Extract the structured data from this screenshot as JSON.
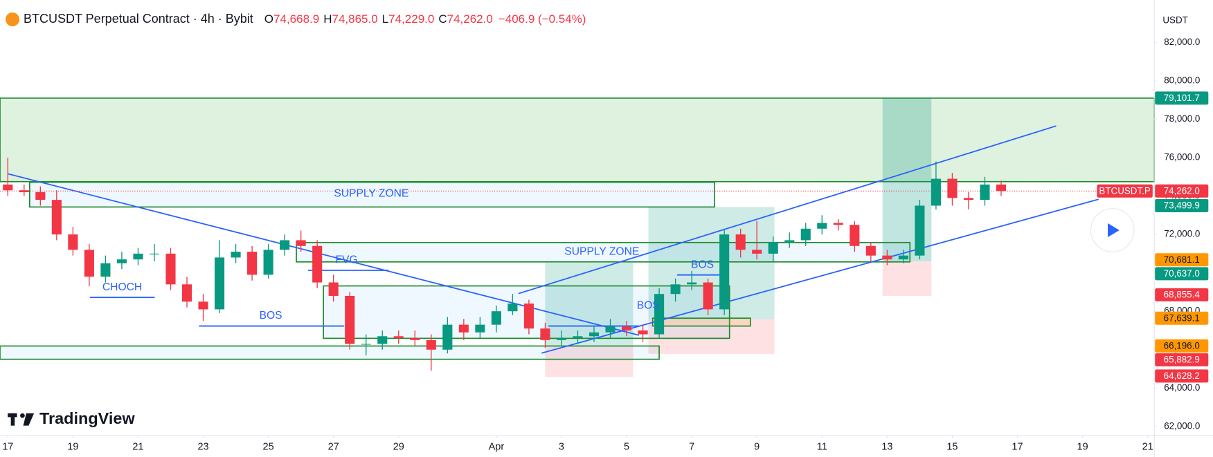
{
  "chart_data": {
    "type": "candlestick",
    "title": "BTCUSDT Perpetual Contract · 4h · Bybit",
    "ohlc": [
      {
        "key": "O",
        "value": {
          "value": 74668.9,
          "label": "74,668.9"
        }
      },
      {
        "key": "H",
        "value": {
          "value": 74865.0,
          "label": "74,865.0"
        }
      },
      {
        "key": "L",
        "value": {
          "value": 74229.0,
          "label": "74,229.0"
        }
      },
      {
        "key": "C",
        "value": {
          "value": 74262.0,
          "label": "74,262.0"
        }
      }
    ],
    "change": "−406.9 (−0.54%)",
    "unit": "USDT",
    "logo": "TradingView",
    "symbol_tag": "BTCUSDT.P",
    "up_color": "#089981",
    "down_color": "#f23645",
    "grid": false,
    "x": [
      0,
      0.5,
      1,
      1.5,
      2,
      2.5,
      3,
      3.5,
      4,
      4.5,
      5,
      5.5,
      6,
      6.5,
      7,
      7.5,
      8,
      8.5,
      9,
      9.5,
      10,
      10.5,
      11,
      11.5,
      12,
      12.5,
      13,
      13.5,
      14,
      14.5,
      15,
      15.5,
      16,
      16.5,
      17,
      17.5,
      18,
      18.5,
      19,
      19.5,
      20,
      20.5,
      21,
      21.5,
      22,
      22.5,
      23,
      23.5,
      24,
      24.5,
      25,
      25.5,
      26,
      26.5,
      27,
      27.5,
      28,
      28.5,
      29,
      29.5,
      30,
      30.5
    ],
    "open": [
      74600,
      74300,
      74200,
      73800,
      72000,
      71200,
      69800,
      70500,
      70700,
      71000,
      71000,
      69400,
      68500,
      68100,
      70800,
      71100,
      69900,
      71200,
      71700,
      71400,
      69500,
      68800,
      66300,
      66300,
      66700,
      66600,
      66500,
      66000,
      67300,
      66900,
      67300,
      68000,
      68400,
      67100,
      66500,
      66600,
      66700,
      66900,
      67200,
      67000,
      66800,
      68900,
      69400,
      69500,
      68100,
      72000,
      71200,
      71000,
      71600,
      71700,
      72300,
      72600,
      72500,
      71400,
      70900,
      70700,
      70900,
      73500,
      74900,
      73900,
      73800,
      74600
    ],
    "high": [
      76000,
      74600,
      74500,
      74300,
      72400,
      71500,
      70900,
      71100,
      71300,
      71500,
      71300,
      69800,
      68900,
      71700,
      71500,
      71400,
      71500,
      72000,
      72200,
      71700,
      69900,
      69000,
      66800,
      67000,
      67000,
      67000,
      66800,
      67700,
      67600,
      67700,
      68300,
      68900,
      68600,
      67400,
      67000,
      67000,
      67200,
      67600,
      67500,
      67300,
      69200,
      69700,
      70100,
      69700,
      72300,
      72300,
      72700,
      71900,
      72100,
      72600,
      73000,
      72800,
      72700,
      71600,
      71200,
      71200,
      73800,
      75800,
      75200,
      74200,
      75000,
      74800
    ],
    "low": [
      74000,
      74000,
      73500,
      71700,
      70900,
      69300,
      69500,
      70200,
      70400,
      70600,
      69100,
      68200,
      67500,
      67900,
      70500,
      69600,
      69700,
      70900,
      71100,
      69200,
      68500,
      66000,
      65700,
      66000,
      66300,
      66200,
      64900,
      65800,
      66500,
      66600,
      66900,
      67800,
      66800,
      66100,
      66200,
      66300,
      66400,
      66600,
      66700,
      66400,
      66600,
      68500,
      69100,
      67800,
      67800,
      70800,
      70700,
      70600,
      71300,
      71400,
      72000,
      72200,
      71100,
      70600,
      70400,
      70500,
      70700,
      73300,
      73500,
      73300,
      73500,
      74000
    ],
    "close": [
      74300,
      74200,
      73800,
      72000,
      71200,
      69800,
      70500,
      70700,
      71000,
      71000,
      69400,
      68500,
      68100,
      70800,
      71100,
      69900,
      71200,
      71700,
      71400,
      69500,
      68800,
      66300,
      66300,
      66700,
      66600,
      66500,
      66000,
      67300,
      66900,
      67300,
      68000,
      68400,
      67100,
      66500,
      66600,
      66700,
      66900,
      67200,
      67000,
      66800,
      68900,
      69400,
      69500,
      68100,
      72000,
      71200,
      71000,
      71600,
      71700,
      72300,
      72600,
      72500,
      71400,
      70900,
      70700,
      70900,
      73500,
      74900,
      73900,
      73800,
      74600,
      74262
    ],
    "xlim": [
      -0.24,
      35.2
    ],
    "xticks": [
      {
        "value": 0,
        "label": "17"
      },
      {
        "value": 2,
        "label": "19"
      },
      {
        "value": 4,
        "label": "21"
      },
      {
        "value": 6,
        "label": "23"
      },
      {
        "value": 8,
        "label": "25"
      },
      {
        "value": 10,
        "label": "27"
      },
      {
        "value": 12,
        "label": "29"
      },
      {
        "value": 15,
        "label": "Apr"
      },
      {
        "value": 17,
        "label": "3"
      },
      {
        "value": 19,
        "label": "5"
      },
      {
        "value": 21,
        "label": "7"
      },
      {
        "value": 23,
        "label": "9"
      },
      {
        "value": 25,
        "label": "11"
      },
      {
        "value": 27,
        "label": "13"
      },
      {
        "value": 29,
        "label": "15"
      },
      {
        "value": 31,
        "label": "17"
      },
      {
        "value": 33,
        "label": "19"
      },
      {
        "value": 35,
        "label": "21"
      }
    ],
    "ylim": [
      61520,
      84210
    ],
    "yticks": [
      {
        "value": 62000,
        "label": "62,000.0"
      },
      {
        "value": 64000,
        "label": "64,000.0"
      },
      {
        "value": 66000,
        "label": "66,000.0"
      },
      {
        "value": 68000,
        "label": "68,000.0"
      },
      {
        "value": 70000,
        "label": "70,000.0"
      },
      {
        "value": 72000,
        "label": "72,000.0"
      },
      {
        "value": 74000,
        "label": "74,000.0"
      },
      {
        "value": 76000,
        "label": "76,000.0"
      },
      {
        "value": 78000,
        "label": "78,000.0"
      },
      {
        "value": 80000,
        "label": "80,000.0"
      },
      {
        "value": 82000,
        "label": "82,000.0"
      }
    ],
    "price_labels": [
      {
        "value": 79101.7,
        "label": "79,101.7",
        "color": "#089981"
      },
      {
        "value": 74262.0,
        "label": "74,262.0",
        "color": "#f23645"
      },
      {
        "value": 73499.9,
        "label": "73,499.9",
        "color": "#089981"
      },
      {
        "value": 70681.1,
        "label": "70,681.1",
        "color": "#ff9800"
      },
      {
        "value": 70637.0,
        "label": "70,637.0",
        "color": "#089981"
      },
      {
        "value": 68855.4,
        "label": "68,855.4",
        "color": "#f23645"
      },
      {
        "value": 67639.1,
        "label": "67,639.1",
        "color": "#ff9800"
      },
      {
        "value": 66196.0,
        "label": "66,196.0",
        "color": "#ff9800"
      },
      {
        "value": 65882.9,
        "label": "65,882.9",
        "color": "#f23645"
      },
      {
        "value": 64628.2,
        "label": "64,628.2",
        "color": "#f23645"
      }
    ],
    "zones": [
      {
        "x": [
          -0.24,
          35.2
        ],
        "y": [
          74750,
          79100
        ],
        "fill": "rgba(76,175,80,0.18)",
        "stroke": "#1e8a2e"
      },
      {
        "x": [
          16.5,
          19.2
        ],
        "y": [
          66190,
          70530
        ],
        "fill": "rgba(8,153,129,0.2)"
      },
      {
        "x": [
          16.5,
          19.2
        ],
        "y": [
          64580,
          66190
        ],
        "fill": "rgba(242,54,69,0.15)"
      },
      {
        "x": [
          19.67,
          23.54
        ],
        "y": [
          67590,
          73430
        ],
        "fill": "rgba(8,153,129,0.2)"
      },
      {
        "x": [
          19.67,
          23.54
        ],
        "y": [
          65780,
          67590
        ],
        "fill": "rgba(242,54,69,0.15)"
      },
      {
        "x": [
          26.86,
          28.36
        ],
        "y": [
          70610,
          79100
        ],
        "fill": "rgba(8,153,129,0.25)"
      },
      {
        "x": [
          26.86,
          28.36
        ],
        "y": [
          68800,
          70610
        ],
        "fill": "rgba(242,54,69,0.15)"
      },
      {
        "x": [
          0.67,
          21.7
        ],
        "y": [
          73430,
          74720
        ],
        "fill": "rgba(33,150,243,0.07)",
        "stroke": "#1e8a2e"
      },
      {
        "x": [
          8.86,
          27.7
        ],
        "y": [
          70570,
          71580
        ],
        "fill": "rgba(33,150,243,0.07)",
        "stroke": "#1e8a2e"
      },
      {
        "x": [
          9.69,
          22.16
        ],
        "y": [
          66590,
          69320
        ],
        "fill": "rgba(33,150,243,0.07)",
        "stroke": "#1e8a2e"
      },
      {
        "x": [
          -0.24,
          20.0
        ],
        "y": [
          65500,
          66190
        ],
        "fill": "rgba(33,150,243,0.07)",
        "stroke": "#1e8a2e"
      },
      {
        "x": [
          19.8,
          22.8
        ],
        "y": [
          67230,
          67640
        ],
        "fill": "rgba(255,152,0,0.15)",
        "stroke": "#1e8a2e"
      }
    ],
    "lines": [
      {
        "x": [
          0,
          19.38
        ],
        "y": [
          75160,
          66750
        ],
        "color": "#2962ff"
      },
      {
        "x": [
          15.68,
          32.19
        ],
        "y": [
          68920,
          77650
        ],
        "color": "#2962ff"
      },
      {
        "x": [
          16.39,
          33.49
        ],
        "y": [
          65820,
          73830
        ],
        "color": "#2962ff"
      },
      {
        "x": [
          2.52,
          4.51
        ],
        "y": [
          68720,
          68720
        ],
        "color": "#2962ff"
      },
      {
        "x": [
          5.87,
          10.33
        ],
        "y": [
          67230,
          67230
        ],
        "color": "#2962ff"
      },
      {
        "x": [
          9.22,
          11.69
        ],
        "y": [
          70130,
          70130
        ],
        "color": "#2962ff"
      },
      {
        "x": [
          20.55,
          21.85
        ],
        "y": [
          69890,
          69890
        ],
        "color": "#2962ff"
      },
      {
        "x": [
          16.6,
          19.38
        ],
        "y": [
          67230,
          67230
        ],
        "color": "#2962ff"
      }
    ],
    "annotations": [
      "SUPPLY ZONE",
      "SUPPLY ZONE",
      "FVG",
      "CHOCH",
      "BOS",
      "BOS",
      "BOS"
    ]
  }
}
